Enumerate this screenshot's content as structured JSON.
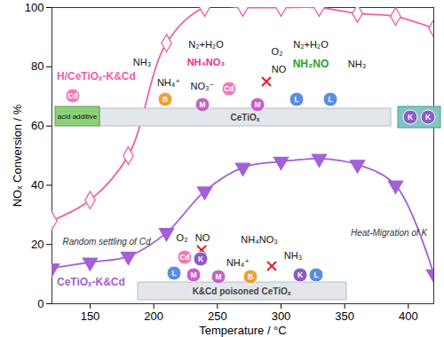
{
  "chart_data": {
    "type": "line",
    "x_label": "Temperature / °C",
    "y_label": "NOₓ Conversion / %",
    "xlim": [
      120,
      420
    ],
    "ylim": [
      0,
      100
    ],
    "xticks": [
      150,
      200,
      250,
      300,
      350,
      400
    ],
    "yticks": [
      0,
      20,
      40,
      60,
      80,
      100
    ],
    "grid": false,
    "x": [
      120,
      150,
      180,
      210,
      240,
      270,
      300,
      330,
      360,
      390,
      420
    ],
    "series": [
      {
        "name": "H/CeTiOₓ-K&Cd",
        "color": "#ef5fa7",
        "marker": "diamond-open",
        "values": [
          28,
          35,
          50,
          88,
          100,
          100,
          100,
          100,
          98,
          97,
          93
        ]
      },
      {
        "name": "CeTiOₓ-K&Cd",
        "color": "#a25fd6",
        "marker": "triangle-down",
        "values": [
          12,
          14,
          16,
          24,
          38,
          46,
          48,
          49,
          47,
          40,
          10
        ]
      }
    ],
    "annotations": [
      "NH₃",
      "N₂+H₂O",
      "NH₄NO₃",
      "NH₄⁺",
      "NO₃⁻",
      "O₂",
      "NO",
      "N₂+H₂O",
      "NH₂NO",
      "NH₃",
      "Cd",
      "acid additive",
      "CeTiOₓ",
      "B",
      "M",
      "Cd",
      "M",
      "L",
      "L",
      "K",
      "K",
      "Random settling of Cd",
      "Heat-Migration of K",
      "O₂",
      "NO",
      "NH₄NO₃",
      "NH₄⁺",
      "NH₃",
      "Cd",
      "K",
      "L",
      "M",
      "M",
      "B",
      "K",
      "L",
      "K&Cd poisoned CeTiOₓ"
    ]
  }
}
